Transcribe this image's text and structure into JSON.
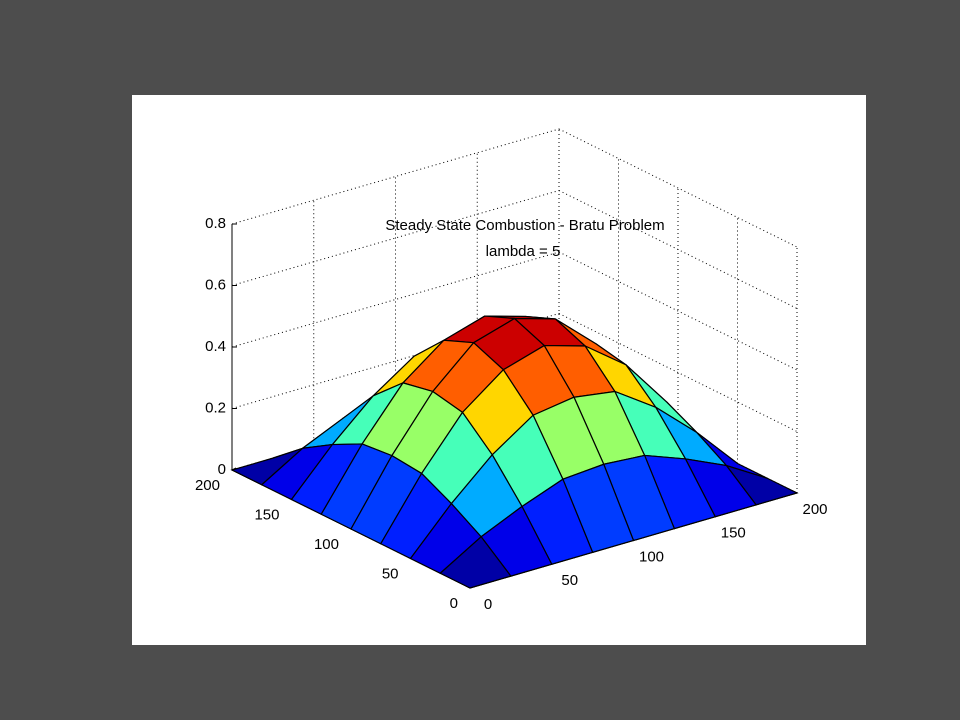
{
  "chart_data": {
    "type": "surface",
    "title": "Steady State Combustion - Bratu Problem",
    "subtitle": "lambda = 5",
    "x": [
      0,
      25,
      50,
      75,
      100,
      125,
      150,
      175,
      200
    ],
    "y": [
      0,
      25,
      50,
      75,
      100,
      125,
      150,
      175,
      200
    ],
    "z": [
      [
        0,
        0,
        0,
        0,
        0,
        0,
        0,
        0,
        0
      ],
      [
        0,
        0.08,
        0.14,
        0.19,
        0.2,
        0.19,
        0.14,
        0.08,
        0
      ],
      [
        0,
        0.14,
        0.26,
        0.35,
        0.37,
        0.35,
        0.26,
        0.14,
        0
      ],
      [
        0,
        0.19,
        0.35,
        0.45,
        0.49,
        0.45,
        0.35,
        0.19,
        0
      ],
      [
        0,
        0.2,
        0.37,
        0.49,
        0.53,
        0.49,
        0.37,
        0.2,
        0
      ],
      [
        0,
        0.19,
        0.35,
        0.45,
        0.49,
        0.45,
        0.35,
        0.19,
        0
      ],
      [
        0,
        0.14,
        0.26,
        0.35,
        0.37,
        0.35,
        0.26,
        0.14,
        0
      ],
      [
        0,
        0.08,
        0.14,
        0.19,
        0.2,
        0.19,
        0.14,
        0.08,
        0
      ],
      [
        0,
        0,
        0,
        0,
        0,
        0,
        0,
        0,
        0
      ]
    ],
    "xlim": [
      0,
      200
    ],
    "xticks": [
      0,
      50,
      100,
      150,
      200
    ],
    "ylim": [
      0,
      200
    ],
    "yticks": [
      0,
      50,
      100,
      150,
      200
    ],
    "zlim": [
      0,
      0.8
    ],
    "zticks": [
      0,
      0.2,
      0.4,
      0.6,
      0.8
    ],
    "colormap": "jet",
    "edge_color": "#000000",
    "grid": true
  }
}
